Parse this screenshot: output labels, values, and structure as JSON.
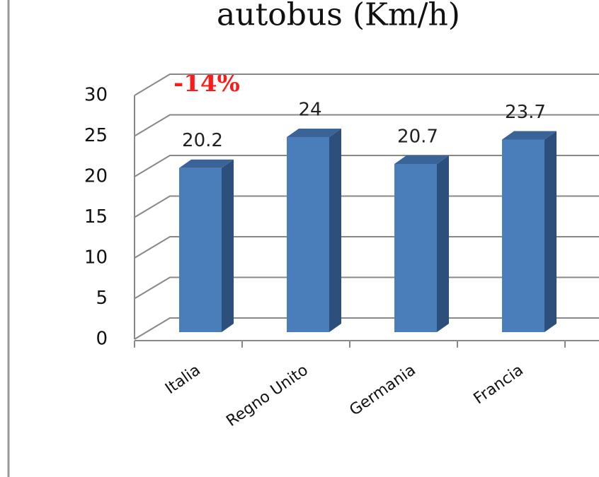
{
  "chart_data": {
    "type": "bar3d",
    "title": "autobus (Km/h)",
    "annotation": "-14%",
    "categories": [
      "Italia",
      "Regno Unito",
      "Germania",
      "Francia"
    ],
    "values": [
      20.2,
      24,
      20.7,
      23.7
    ],
    "color": "#4a7ebb",
    "ylim": [
      0,
      30
    ],
    "yticks": [
      0,
      5,
      10,
      15,
      20,
      25,
      30
    ],
    "grid": true
  }
}
